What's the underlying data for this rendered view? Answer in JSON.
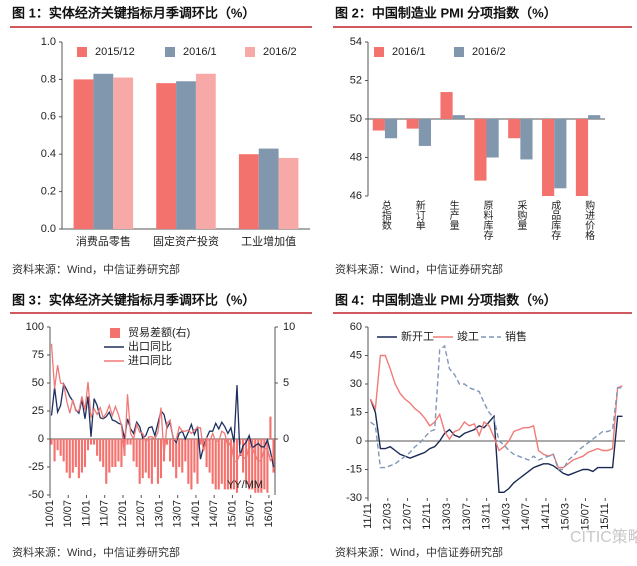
{
  "chart_data": [
    {
      "type": "bar",
      "title": "图 1：实体经济关键指标月季调环比（%）",
      "source": "资料来源：Wind，中信证券研究部",
      "categories": [
        "消费品零售",
        "固定资产投资",
        "工业增加值"
      ],
      "series": [
        {
          "name": "2015/12",
          "color": "#f4726d",
          "values": [
            0.8,
            0.78,
            0.4
          ]
        },
        {
          "name": "2016/1",
          "color": "#8097ae",
          "values": [
            0.83,
            0.79,
            0.43
          ]
        },
        {
          "name": "2016/2",
          "color": "#f7a9a8",
          "values": [
            0.81,
            0.83,
            0.38
          ]
        }
      ],
      "ylim": [
        0,
        1
      ],
      "yticks": [
        {
          "value": 0,
          "label": "0.0"
        },
        0.2,
        0.4,
        0.6,
        0.8,
        {
          "value": 1,
          "label": "1.0"
        }
      ],
      "grid": false,
      "legend": "top",
      "x_label_orientation": "horizontal"
    },
    {
      "type": "bar",
      "title": "图 2：中国制造业 PMI 分项指数（%）",
      "source": "资料来源：Wind，中信证券研究部",
      "categories": [
        "总指数",
        "新订单",
        "生产量",
        "原料库存",
        "采购量",
        "成品库存",
        "购进价格"
      ],
      "series": [
        {
          "name": "2016/1",
          "color": "#f4726d",
          "values": [
            49.4,
            49.5,
            51.4,
            46.8,
            49.0,
            46.0,
            46.0
          ]
        },
        {
          "name": "2016/2",
          "color": "#8097ae",
          "values": [
            49.0,
            48.6,
            50.2,
            48.0,
            47.9,
            46.4,
            50.2
          ]
        }
      ],
      "ylim": [
        46,
        54
      ],
      "yticks": [
        46,
        48,
        50,
        52,
        54
      ],
      "baseline": 50,
      "grid": false,
      "legend": "top-left",
      "x_label_orientation": "vertical"
    },
    {
      "type": "combo",
      "title": "图 3：实体经济关键指标月季调环比（%）",
      "source": "资料来源：Wind，中信证券研究部",
      "annotation": "YY/MM",
      "categories": [
        "10/01",
        null,
        null,
        null,
        null,
        null,
        "10/07",
        null,
        null,
        null,
        null,
        null,
        "11/01",
        null,
        null,
        null,
        null,
        null,
        "11/07",
        null,
        null,
        null,
        null,
        null,
        "12/01",
        null,
        null,
        null,
        null,
        null,
        "12/07",
        null,
        null,
        null,
        null,
        null,
        "13/01",
        null,
        null,
        null,
        null,
        null,
        "13/07",
        null,
        null,
        null,
        null,
        null,
        "14/01",
        null,
        null,
        null,
        null,
        null,
        "14/07",
        null,
        null,
        null,
        null,
        null,
        "15/01",
        null,
        null,
        null,
        null,
        null,
        "15/07",
        null,
        null,
        null,
        null,
        null,
        "16/01",
        null
      ],
      "series": [
        {
          "name": "贸易差额(右)",
          "kind": "bar",
          "axis": "y2",
          "color": "#f4726d",
          "values": [
            -0.5,
            -2,
            -1,
            -1.5,
            -2,
            -3,
            -3.5,
            -3,
            -2.5,
            -3.5,
            -3,
            -2.5,
            -1,
            -0.5,
            -0.5,
            -1.5,
            -2,
            -2.5,
            -4,
            -3,
            -2.5,
            -2.5,
            -2,
            -2.5,
            -1.5,
            -0.5,
            -0.5,
            -2,
            -2.5,
            -4,
            -3.5,
            -3,
            -3.5,
            -4,
            -2.5,
            -4,
            -3.5,
            -2,
            -0.5,
            -2,
            -2.5,
            -3.5,
            -2.5,
            -3,
            -2,
            -4,
            -4.5,
            -3,
            -4,
            -0.5,
            -1,
            -2.5,
            -3,
            -4,
            -4.5,
            -4.5,
            -4,
            -4.5,
            -4.5,
            -4.5,
            -4.5,
            -4.8,
            -0.5,
            -3,
            -4,
            -4.5,
            -4.5,
            -4.8,
            -4.8,
            -4.8,
            -4.5,
            -4.8,
            2,
            -3
          ]
        },
        {
          "name": "出口同比",
          "kind": "line",
          "color": "#1f2f5f",
          "values": [
            21,
            46,
            24,
            30,
            49,
            44,
            38,
            34,
            26,
            23,
            35,
            18,
            38,
            2,
            36,
            30,
            19,
            18,
            20,
            24,
            17,
            16,
            14,
            13,
            0,
            18,
            9,
            5,
            15,
            11,
            1,
            3,
            10,
            11,
            3,
            14,
            25,
            22,
            10,
            15,
            1,
            -3,
            5,
            7,
            0,
            6,
            13,
            4,
            11,
            -18,
            -7,
            1,
            7,
            7,
            14,
            9,
            15,
            11,
            5,
            10,
            -3,
            48,
            -15,
            -6,
            -3,
            3,
            -8,
            -6,
            -4,
            -7,
            -7,
            -1,
            -11,
            -25
          ]
        },
        {
          "name": "进口同比",
          "kind": "line",
          "color": "#ee7a78",
          "values": [
            85,
            45,
            66,
            50,
            49,
            34,
            23,
            35,
            25,
            25,
            38,
            26,
            51,
            19,
            27,
            22,
            28,
            19,
            23,
            30,
            21,
            29,
            22,
            12,
            -15,
            40,
            5,
            0,
            13,
            6,
            5,
            -3,
            2,
            2,
            0,
            6,
            28,
            -15,
            14,
            17,
            0,
            -1,
            11,
            7,
            7,
            8,
            5,
            8,
            10,
            10,
            -11,
            1,
            -2,
            5,
            -2,
            -2,
            7,
            5,
            -7,
            -2,
            -20,
            -20,
            -13,
            -16,
            -18,
            -6,
            -8,
            -14,
            -20,
            -19,
            -9,
            -8,
            -19,
            -14
          ]
        }
      ],
      "ylim": [
        -50,
        100
      ],
      "yticks": [
        -50,
        -25,
        0,
        25,
        50,
        75,
        100
      ],
      "y2lim": [
        -5,
        10
      ],
      "y2ticks": [
        0,
        5,
        10
      ],
      "grid": false,
      "legend": "top-center",
      "x_label_orientation": "rotated"
    },
    {
      "type": "line",
      "title": "图 4：中国制造业 PMI 分项指数（%）",
      "source": "资料来源：Wind，中信证券研究部",
      "watermark": "CITIC策略",
      "categories": [
        "11/11",
        null,
        null,
        null,
        "12/03",
        null,
        null,
        null,
        "12/07",
        null,
        null,
        null,
        "12/11",
        null,
        null,
        null,
        "13/03",
        null,
        null,
        null,
        "13/07",
        null,
        null,
        null,
        "13/11",
        null,
        null,
        null,
        "14/03",
        null,
        null,
        null,
        "14/07",
        null,
        null,
        null,
        "14/11",
        null,
        null,
        null,
        "15/03",
        null,
        null,
        null,
        "15/07",
        null,
        null,
        null,
        "15/11",
        null,
        null,
        null
      ],
      "series": [
        {
          "name": "新开工",
          "color": "#1b2a55",
          "dash": false,
          "values": [
            22,
            15,
            -4,
            -4,
            -3,
            -5,
            -7,
            -8,
            -9,
            -8,
            -7,
            -6,
            -4,
            -3,
            0,
            4,
            6,
            3,
            2,
            4,
            5,
            6,
            8,
            7,
            10,
            13,
            -27,
            -27,
            -25,
            -22,
            -20,
            -18,
            -16,
            -14,
            -13,
            -12,
            -12,
            -13,
            -15,
            -17,
            -18,
            -17,
            -16,
            -15,
            -15,
            -16,
            -14,
            -14,
            -14,
            -14,
            13,
            13
          ]
        },
        {
          "name": "竣工",
          "color": "#f07b78",
          "dash": false,
          "values": [
            22,
            17,
            45,
            45,
            38,
            30,
            25,
            22,
            20,
            17,
            15,
            12,
            8,
            10,
            14,
            5,
            1,
            5,
            6,
            10,
            8,
            9,
            3,
            10,
            8,
            2,
            -5,
            -3,
            0,
            5,
            6,
            7,
            7,
            8,
            -5,
            -7,
            -8,
            -7,
            -14,
            -14,
            -12,
            -10,
            -9,
            -8,
            -6,
            -5,
            -4,
            -5,
            -5,
            -4,
            28,
            29
          ]
        },
        {
          "name": "销售",
          "color": "#8096b8",
          "dash": true,
          "values": [
            10,
            8,
            -14,
            -14,
            -13,
            -12,
            -10,
            -8,
            -6,
            -3,
            -1,
            2,
            5,
            6,
            48,
            50,
            38,
            35,
            30,
            30,
            28,
            27,
            26,
            20,
            15,
            12,
            0,
            -2,
            -5,
            -7,
            -8,
            -9,
            -10,
            -8,
            -10,
            -9,
            -8,
            -7,
            -15,
            -15,
            -10,
            -8,
            -5,
            -3,
            -1,
            1,
            3,
            5,
            5,
            6,
            28,
            28
          ]
        }
      ],
      "ylim": [
        -30,
        60
      ],
      "yticks": [
        -30,
        -15,
        0,
        15,
        30,
        45,
        60
      ],
      "grid": false,
      "legend": "top",
      "x_label_orientation": "rotated"
    }
  ]
}
